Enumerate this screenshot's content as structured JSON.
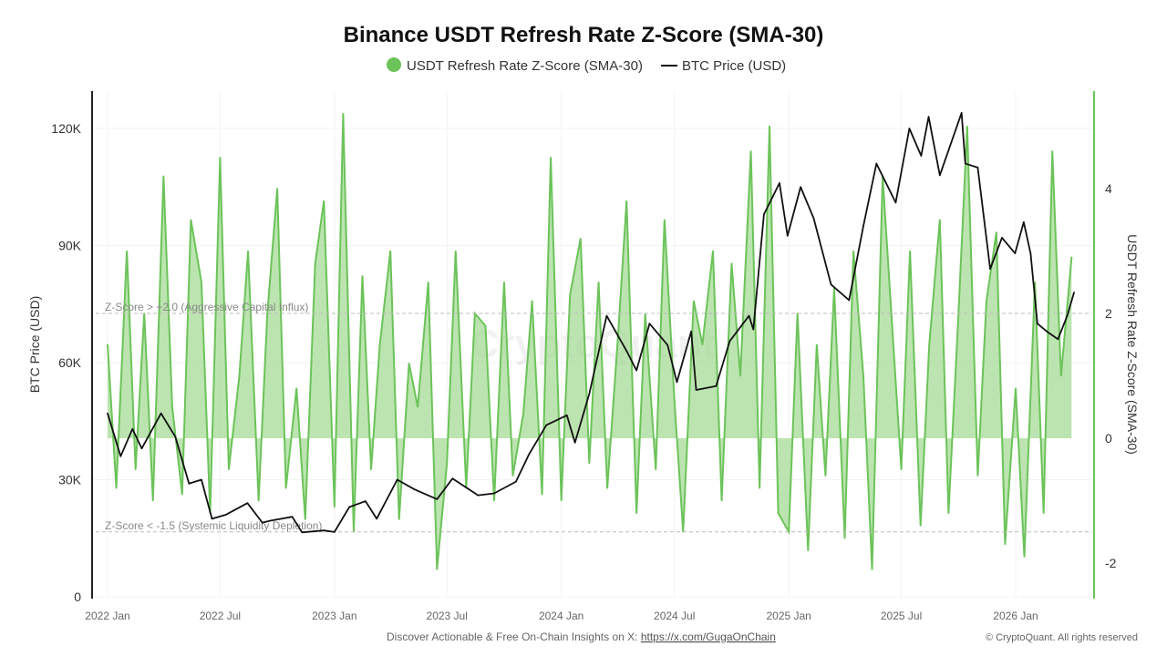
{
  "chart_data": {
    "type": "line",
    "title": "Binance USDT Refresh Rate Z-Score (SMA-30)",
    "legend": {
      "placement": "top-center",
      "entries": [
        "USDT Refresh Rate Z-Score (SMA-30)",
        "BTC Price (USD)"
      ]
    },
    "ylabel_left": "BTC Price (USD)",
    "ylabel_right": "USDT Refresh Rate Z-Score (SMA-30)",
    "left_ticks": [
      "0",
      "30K",
      "60K",
      "90K",
      "120K"
    ],
    "left_ylim": [
      0,
      130000
    ],
    "right_ticks": [
      "-2",
      "0",
      "2",
      "4"
    ],
    "x_ticks": [
      "2022 Jan",
      "2022 Jul",
      "2023 Jan",
      "2023 Jul",
      "2024 Jan",
      "2024 Jul",
      "2025 Jan",
      "2025 Jul",
      "2026 Jan"
    ],
    "grid": true,
    "colors": {
      "zscore": "#6cc35a",
      "zscore_fill": "#9fd88f",
      "btc": "#111111"
    },
    "thresholds": [
      {
        "value": 2.0,
        "label": "Z-Score > +2.0 (Aggressive Capital Influx)"
      },
      {
        "value": -1.5,
        "label": "Z-Score < -1.5 (Systemic Liquidity Depletion)"
      }
    ],
    "series": [
      {
        "name": "BTC Price (USD)",
        "axis": "left",
        "points": [
          [
            "2022-01-01",
            47000
          ],
          [
            "2022-01-22",
            36000
          ],
          [
            "2022-02-10",
            43000
          ],
          [
            "2022-02-25",
            38000
          ],
          [
            "2022-03-28",
            47000
          ],
          [
            "2022-04-20",
            41000
          ],
          [
            "2022-05-12",
            29000
          ],
          [
            "2022-06-01",
            30000
          ],
          [
            "2022-06-18",
            20000
          ],
          [
            "2022-07-10",
            21000
          ],
          [
            "2022-08-14",
            24000
          ],
          [
            "2022-09-07",
            19000
          ],
          [
            "2022-09-20",
            19500
          ],
          [
            "2022-10-25",
            20500
          ],
          [
            "2022-11-10",
            16500
          ],
          [
            "2022-12-15",
            17000
          ],
          [
            "2023-01-01",
            16600
          ],
          [
            "2023-01-25",
            23000
          ],
          [
            "2023-02-20",
            24500
          ],
          [
            "2023-03-10",
            20000
          ],
          [
            "2023-04-12",
            30000
          ],
          [
            "2023-05-10",
            27500
          ],
          [
            "2023-06-15",
            25000
          ],
          [
            "2023-07-10",
            30300
          ],
          [
            "2023-08-20",
            26000
          ],
          [
            "2023-09-15",
            26500
          ],
          [
            "2023-10-20",
            29500
          ],
          [
            "2023-11-10",
            36500
          ],
          [
            "2023-12-08",
            44000
          ],
          [
            "2024-01-10",
            46500
          ],
          [
            "2024-01-23",
            39500
          ],
          [
            "2024-02-15",
            52000
          ],
          [
            "2024-03-14",
            72000
          ],
          [
            "2024-04-15",
            63000
          ],
          [
            "2024-05-01",
            58000
          ],
          [
            "2024-05-22",
            70000
          ],
          [
            "2024-06-20",
            64500
          ],
          [
            "2024-07-05",
            55000
          ],
          [
            "2024-07-28",
            68000
          ],
          [
            "2024-08-05",
            53000
          ],
          [
            "2024-09-06",
            54000
          ],
          [
            "2024-09-28",
            65500
          ],
          [
            "2024-10-29",
            72000
          ],
          [
            "2024-11-05",
            68500
          ],
          [
            "2024-11-22",
            98000
          ],
          [
            "2024-12-17",
            106000
          ],
          [
            "2024-12-30",
            92500
          ],
          [
            "2025-01-20",
            105000
          ],
          [
            "2025-02-10",
            97000
          ],
          [
            "2025-03-10",
            80000
          ],
          [
            "2025-04-08",
            76000
          ],
          [
            "2025-05-01",
            95000
          ],
          [
            "2025-05-22",
            111000
          ],
          [
            "2025-06-22",
            101000
          ],
          [
            "2025-07-14",
            120000
          ],
          [
            "2025-08-02",
            113000
          ],
          [
            "2025-08-14",
            123000
          ],
          [
            "2025-09-01",
            108000
          ],
          [
            "2025-10-06",
            124000
          ],
          [
            "2025-10-12",
            111000
          ],
          [
            "2025-11-01",
            110000
          ],
          [
            "2025-11-21",
            84000
          ],
          [
            "2025-12-10",
            92000
          ],
          [
            "2025-12-31",
            88000
          ],
          [
            "2026-01-14",
            96000
          ],
          [
            "2026-01-25",
            88000
          ],
          [
            "2026-02-05",
            70000
          ],
          [
            "2026-02-20",
            68000
          ],
          [
            "2026-03-10",
            66000
          ],
          [
            "2026-03-25",
            72000
          ],
          [
            "2026-04-05",
            78000
          ]
        ]
      },
      {
        "name": "USDT Refresh Rate Z-Score (SMA-30)",
        "axis": "right",
        "points": [
          [
            "2022-01-01",
            1.5
          ],
          [
            "2022-01-15",
            -0.8
          ],
          [
            "2022-02-01",
            3.0
          ],
          [
            "2022-02-15",
            -0.5
          ],
          [
            "2022-03-01",
            2.0
          ],
          [
            "2022-03-15",
            -1.0
          ],
          [
            "2022-04-01",
            4.2
          ],
          [
            "2022-04-15",
            0.5
          ],
          [
            "2022-05-01",
            -0.9
          ],
          [
            "2022-05-15",
            3.5
          ],
          [
            "2022-06-01",
            2.5
          ],
          [
            "2022-06-15",
            -1.2
          ],
          [
            "2022-07-01",
            4.5
          ],
          [
            "2022-07-15",
            -0.5
          ],
          [
            "2022-08-01",
            1.0
          ],
          [
            "2022-08-15",
            3.0
          ],
          [
            "2022-09-01",
            -1.0
          ],
          [
            "2022-09-15",
            2.0
          ],
          [
            "2022-10-01",
            4.0
          ],
          [
            "2022-10-15",
            -0.8
          ],
          [
            "2022-11-01",
            0.8
          ],
          [
            "2022-11-15",
            -1.3
          ],
          [
            "2022-12-01",
            2.8
          ],
          [
            "2022-12-15",
            3.8
          ],
          [
            "2023-01-01",
            -1.1
          ],
          [
            "2023-01-15",
            5.2
          ],
          [
            "2023-02-01",
            -1.5
          ],
          [
            "2023-02-15",
            2.6
          ],
          [
            "2023-03-01",
            -0.5
          ],
          [
            "2023-03-15",
            1.5
          ],
          [
            "2023-04-01",
            3.0
          ],
          [
            "2023-04-15",
            -1.3
          ],
          [
            "2023-05-01",
            1.2
          ],
          [
            "2023-05-15",
            0.5
          ],
          [
            "2023-06-01",
            2.5
          ],
          [
            "2023-06-15",
            -2.1
          ],
          [
            "2023-07-01",
            -0.4
          ],
          [
            "2023-07-15",
            3.0
          ],
          [
            "2023-08-01",
            -0.8
          ],
          [
            "2023-08-15",
            2.0
          ],
          [
            "2023-09-01",
            1.8
          ],
          [
            "2023-09-15",
            -1.0
          ],
          [
            "2023-10-01",
            2.5
          ],
          [
            "2023-10-15",
            -0.6
          ],
          [
            "2023-11-01",
            0.4
          ],
          [
            "2023-11-15",
            2.2
          ],
          [
            "2023-12-01",
            -0.9
          ],
          [
            "2023-12-15",
            4.5
          ],
          [
            "2024-01-01",
            -1.0
          ],
          [
            "2024-01-15",
            2.3
          ],
          [
            "2024-02-01",
            3.2
          ],
          [
            "2024-02-15",
            -0.4
          ],
          [
            "2024-03-01",
            2.5
          ],
          [
            "2024-03-15",
            -0.8
          ],
          [
            "2024-04-01",
            1.6
          ],
          [
            "2024-04-15",
            3.8
          ],
          [
            "2024-05-01",
            -1.2
          ],
          [
            "2024-05-15",
            2.0
          ],
          [
            "2024-06-01",
            -0.5
          ],
          [
            "2024-06-15",
            3.5
          ],
          [
            "2024-07-01",
            0.6
          ],
          [
            "2024-07-15",
            -1.5
          ],
          [
            "2024-08-01",
            2.2
          ],
          [
            "2024-08-15",
            1.5
          ],
          [
            "2024-09-01",
            3.0
          ],
          [
            "2024-09-15",
            -1.0
          ],
          [
            "2024-10-01",
            2.8
          ],
          [
            "2024-10-15",
            1.0
          ],
          [
            "2024-11-01",
            4.6
          ],
          [
            "2024-11-15",
            -0.8
          ],
          [
            "2024-12-01",
            5.0
          ],
          [
            "2024-12-15",
            -1.2
          ],
          [
            "2025-01-01",
            -1.5
          ],
          [
            "2025-01-15",
            2.0
          ],
          [
            "2025-02-01",
            -1.8
          ],
          [
            "2025-02-15",
            1.5
          ],
          [
            "2025-03-01",
            -0.6
          ],
          [
            "2025-03-15",
            2.4
          ],
          [
            "2025-04-01",
            -1.6
          ],
          [
            "2025-04-15",
            3.0
          ],
          [
            "2025-05-01",
            1.0
          ],
          [
            "2025-05-15",
            -2.1
          ],
          [
            "2025-06-01",
            4.2
          ],
          [
            "2025-06-15",
            2.0
          ],
          [
            "2025-07-01",
            -0.5
          ],
          [
            "2025-07-15",
            3.0
          ],
          [
            "2025-08-01",
            -1.4
          ],
          [
            "2025-08-15",
            1.5
          ],
          [
            "2025-09-01",
            3.5
          ],
          [
            "2025-09-15",
            -1.2
          ],
          [
            "2025-10-01",
            2.0
          ],
          [
            "2025-10-15",
            5.0
          ],
          [
            "2025-11-01",
            -0.6
          ],
          [
            "2025-11-15",
            2.2
          ],
          [
            "2025-12-01",
            3.3
          ],
          [
            "2025-12-15",
            -1.7
          ],
          [
            "2026-01-01",
            0.8
          ],
          [
            "2026-01-15",
            -1.9
          ],
          [
            "2026-02-01",
            2.5
          ],
          [
            "2026-02-15",
            -1.2
          ],
          [
            "2026-03-01",
            4.6
          ],
          [
            "2026-03-15",
            1.0
          ],
          [
            "2026-04-01",
            2.9
          ]
        ]
      }
    ]
  },
  "watermark": "CryptoQuant",
  "footer": {
    "text": "Discover Actionable & Free On-Chain Insights on X: ",
    "link": "https://x.com/GugaOnChain",
    "copyright": "© CryptoQuant. All rights reserved"
  }
}
